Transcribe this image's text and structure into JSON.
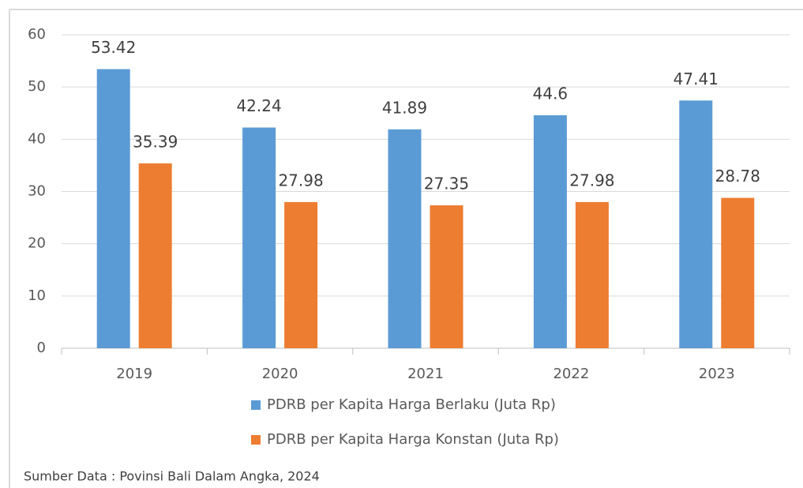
{
  "chart_data": {
    "type": "bar",
    "categories": [
      "2019",
      "2020",
      "2021",
      "2022",
      "2023"
    ],
    "series": [
      {
        "name": "PDRB per Kapita Harga Berlaku (Juta Rp)",
        "color": "#5b9bd5",
        "values": [
          53.42,
          42.24,
          41.89,
          44.6,
          47.41
        ]
      },
      {
        "name": "PDRB per Kapita Harga Konstan (Juta Rp)",
        "color": "#ed7d31",
        "values": [
          35.39,
          27.98,
          27.35,
          27.98,
          28.78
        ]
      }
    ],
    "ylim": [
      0,
      60
    ],
    "yticks": [
      0,
      10,
      20,
      30,
      40,
      50,
      60
    ],
    "grid": true,
    "legend": "bottom",
    "source": "Sumber Data : Povinsi Bali Dalam Angka, 2024"
  }
}
